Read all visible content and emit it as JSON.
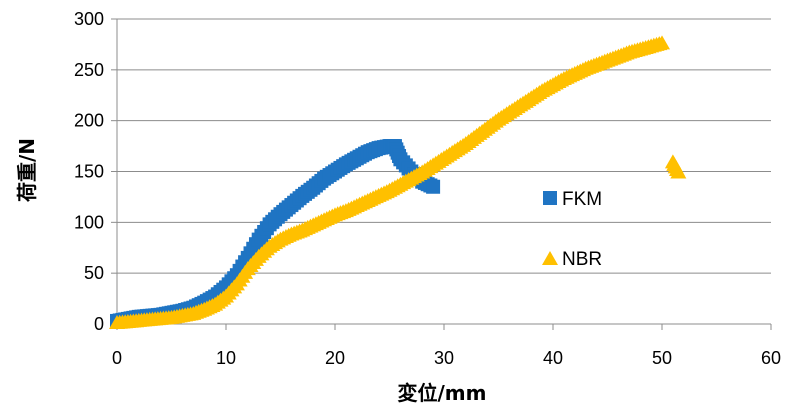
{
  "chart_data": {
    "type": "scatter",
    "xlabel": "変位/mm",
    "ylabel": "荷重/N",
    "xlim": [
      0,
      60
    ],
    "ylim": [
      0,
      300
    ],
    "xticks": [
      0,
      10,
      20,
      30,
      40,
      50,
      60
    ],
    "yticks": [
      0,
      50,
      100,
      150,
      200,
      250,
      300
    ],
    "grid": "horizontal",
    "legend_position": "right",
    "series": [
      {
        "name": "FKM",
        "marker": "square",
        "color": "#1f74c3",
        "x": [
          0,
          1,
          2,
          3,
          4,
          5,
          6,
          7,
          8,
          9,
          10,
          11,
          12,
          13,
          14,
          15,
          16,
          17,
          18,
          19,
          20,
          21,
          22,
          23,
          24,
          25,
          25.5,
          26,
          27,
          28,
          29
        ],
        "y": [
          3,
          5,
          7,
          8,
          9,
          11,
          13,
          16,
          21,
          27,
          36,
          48,
          65,
          83,
          98,
          108,
          117,
          126,
          134,
          143,
          150,
          157,
          163,
          169,
          173,
          175,
          175,
          162,
          150,
          140,
          135
        ]
      },
      {
        "name": "NBR",
        "marker": "triangle",
        "color": "#ffc000",
        "x": [
          0,
          1,
          2,
          3,
          4,
          5,
          6,
          7,
          8,
          9,
          10,
          11,
          12,
          13,
          14,
          15,
          16,
          17,
          18,
          19,
          20,
          21,
          22,
          23,
          24,
          25,
          26,
          27,
          28,
          29,
          30,
          31,
          32,
          33,
          34,
          35,
          36,
          37,
          38,
          39,
          40,
          41,
          42,
          43,
          44,
          45,
          46,
          47,
          48,
          49,
          50,
          51,
          51.5
        ],
        "y": [
          2,
          3,
          4,
          5,
          6,
          7,
          9,
          11,
          15,
          20,
          28,
          40,
          55,
          67,
          77,
          84,
          89,
          93,
          98,
          103,
          108,
          112,
          117,
          122,
          127,
          132,
          138,
          144,
          150,
          157,
          164,
          171,
          178,
          186,
          194,
          202,
          209,
          216,
          223,
          230,
          236,
          242,
          247,
          252,
          256,
          260,
          264,
          268,
          271,
          274,
          277,
          160,
          150
        ]
      }
    ]
  }
}
